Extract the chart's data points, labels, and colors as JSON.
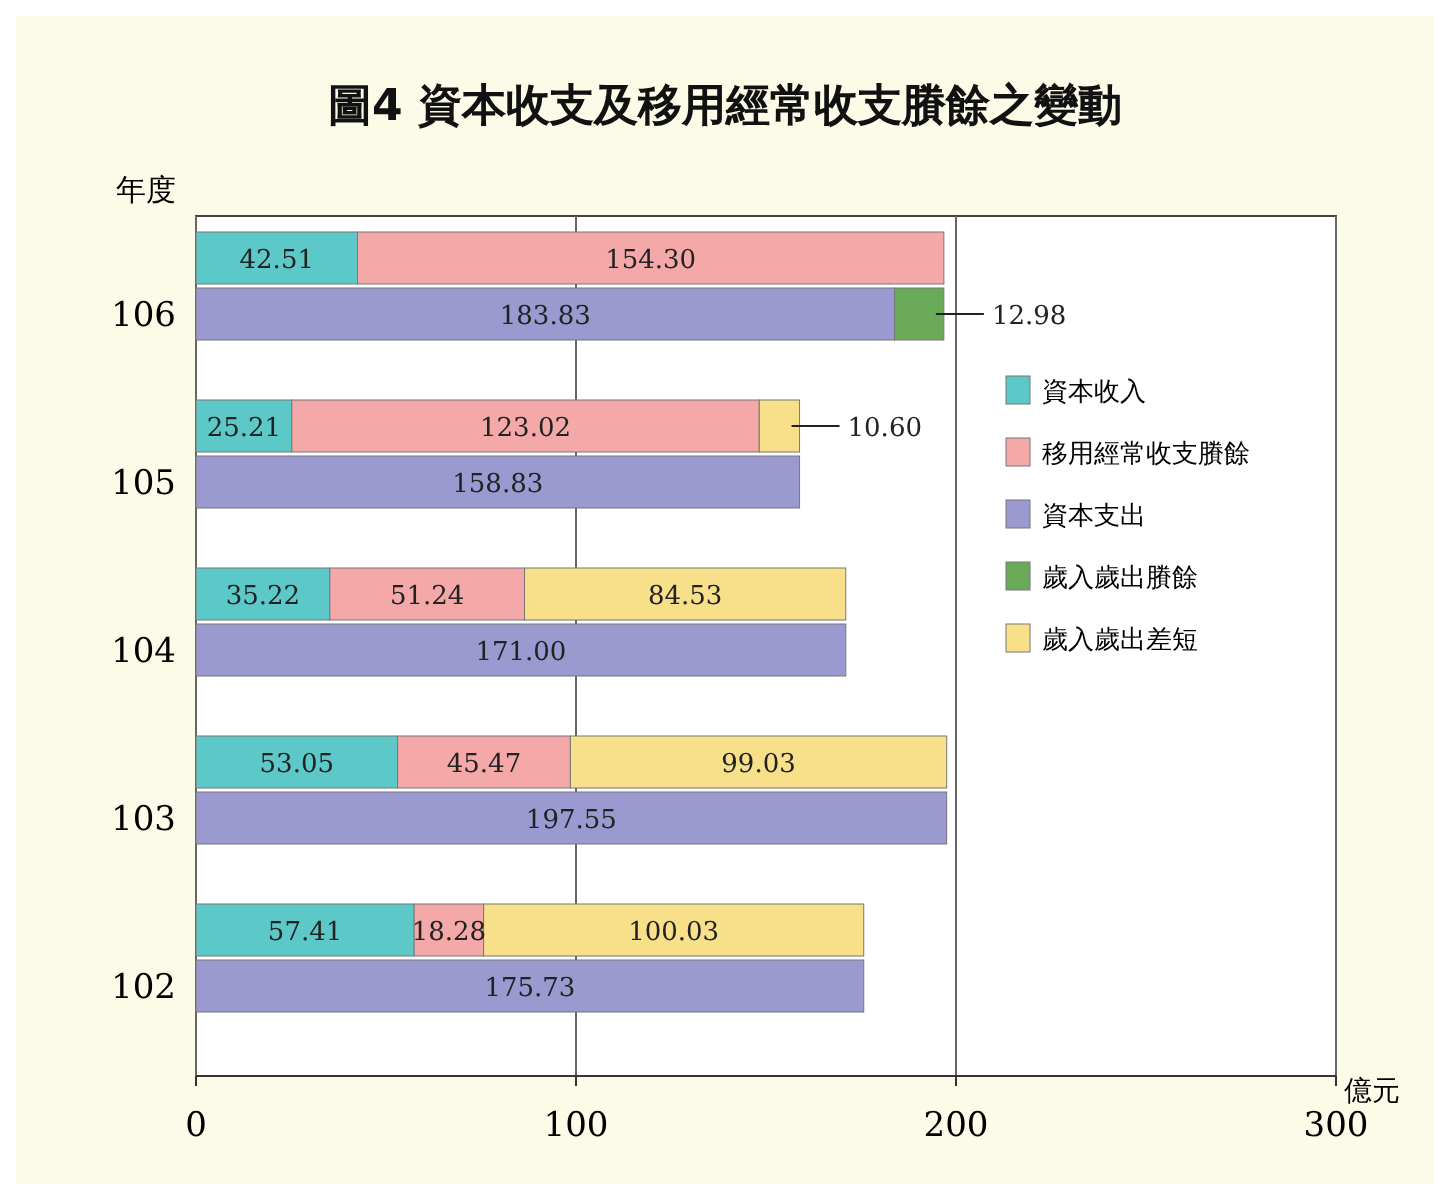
{
  "chart_data": {
    "type": "bar",
    "orientation": "horizontal",
    "stacked": true,
    "title": "圖4 資本收支及移用經常收支賸餘之變動",
    "ylabel": "年度",
    "xlabel": "億元",
    "categories": [
      null,
      "106",
      null,
      "105",
      null,
      "104",
      null,
      "103",
      null,
      "102"
    ],
    "series": [
      {
        "name": "資本收入",
        "color": "#5cc8c8",
        "values": [
          42.51,
          null,
          25.21,
          null,
          35.22,
          null,
          53.05,
          null,
          57.41,
          null
        ],
        "value_labels": [
          "42.51",
          null,
          "25.21",
          null,
          "35.22",
          null,
          "53.05",
          null,
          "57.41",
          null
        ]
      },
      {
        "name": "移用經常收支賸餘",
        "color": "#f4a8a8",
        "values": [
          154.3,
          null,
          123.02,
          null,
          51.24,
          null,
          45.47,
          null,
          18.28,
          null
        ],
        "value_labels": [
          "154.30",
          null,
          "123.02",
          null,
          "51.24",
          null,
          "45.47",
          null,
          "18.28",
          null
        ]
      },
      {
        "name": "資本支出",
        "color": "#9a9ad0",
        "values": [
          null,
          183.83,
          null,
          158.83,
          null,
          171.0,
          null,
          197.55,
          null,
          175.73
        ],
        "value_labels": [
          null,
          "183.83",
          null,
          "158.83",
          null,
          "171.00",
          null,
          "197.55",
          null,
          "175.73"
        ]
      },
      {
        "name": "歲入歲出賸餘",
        "color": "#6aaa58",
        "values": [
          null,
          12.98,
          null,
          null,
          null,
          null,
          null,
          null,
          null,
          null
        ],
        "value_labels": [
          null,
          "12.98",
          null,
          null,
          null,
          null,
          null,
          null,
          null,
          null
        ]
      },
      {
        "name": "歲入歲出差短",
        "color": "#f8e08a",
        "values": [
          null,
          null,
          10.6,
          null,
          84.53,
          null,
          99.03,
          null,
          100.03,
          null
        ],
        "value_labels": [
          null,
          null,
          "10.60",
          null,
          "84.53",
          null,
          "99.03",
          null,
          "100.03",
          null
        ]
      }
    ],
    "xlim": [
      0,
      300
    ],
    "xticks": [
      0,
      100,
      200,
      300
    ],
    "grid": "x",
    "legend": "right"
  }
}
